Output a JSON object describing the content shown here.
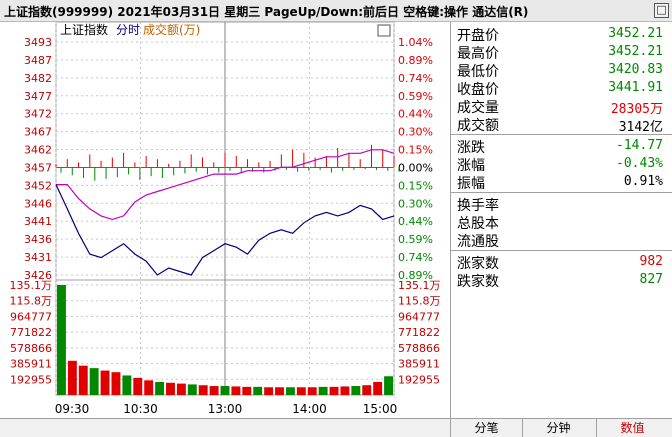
{
  "window": {
    "title": "上证指数(999999)  2021年03月31日  星期三  PageUp/Down:前后日  空格键:操作  通达信(R)",
    "close_glyph": "□"
  },
  "chart": {
    "legend": {
      "name": "上证指数",
      "line": "分时",
      "volume_label": "成交额(万)"
    },
    "colors": {
      "up": "#e00000",
      "down": "#008800",
      "index": "#000080",
      "avg": "#c000c0",
      "grid": "#c8c8c8"
    },
    "price_ticks": [
      "3493",
      "3487",
      "3482",
      "3477",
      "3472",
      "3467",
      "3462",
      "3457",
      "3452",
      "3446",
      "3441",
      "3436",
      "3431",
      "3426"
    ],
    "pct_ticks": [
      "1.04%",
      "0.89%",
      "0.74%",
      "0.59%",
      "0.44%",
      "0.30%",
      "0.15%",
      "0.00%",
      "0.15%",
      "0.30%",
      "0.44%",
      "0.59%",
      "0.74%",
      "0.89%"
    ],
    "pct_colors": [
      "up",
      "up",
      "up",
      "up",
      "up",
      "up",
      "up",
      "neutral",
      "down",
      "down",
      "down",
      "down",
      "down",
      "down"
    ],
    "volume_ticks_left": [
      "135.1万",
      "115.8万",
      "964777",
      "771822",
      "578866",
      "385911",
      "192955"
    ],
    "volume_ticks_right": [
      "135.1万",
      "115.8万",
      "964777",
      "771822",
      "578866",
      "385911",
      "192955"
    ],
    "time_ticks": [
      "09:30",
      "10:30",
      "13:00",
      "14:00",
      "15:00"
    ],
    "price_min": 3426,
    "price_max": 3493,
    "prev_close": 3457,
    "vol_max": 1351000
  },
  "chart_data": {
    "type": "line",
    "title": "上证指数(999999) 2021年03月31日",
    "x_ticks": [
      "09:30",
      "10:30",
      "13:00",
      "14:00",
      "15:00"
    ],
    "ylim": [
      3426,
      3493
    ],
    "series": [
      {
        "name": "上证指数",
        "values": [
          3452,
          3445,
          3438,
          3432,
          3431,
          3433,
          3435,
          3432,
          3430,
          3426,
          3428,
          3427,
          3426,
          3431,
          3433,
          3435,
          3434,
          3432,
          3436,
          3438,
          3439,
          3438,
          3441,
          3443,
          3444,
          3443,
          3444,
          3446,
          3445,
          3442,
          3443
        ]
      },
      {
        "name": "均价",
        "values": [
          3452,
          3452,
          3448,
          3445,
          3443,
          3442,
          3443,
          3447,
          3449,
          3450,
          3451,
          3452,
          3453,
          3454,
          3455,
          3455,
          3455,
          3456,
          3456,
          3456,
          3457,
          3457,
          3458,
          3459,
          3460,
          3460,
          3461,
          3461,
          3462,
          3462,
          3461
        ]
      }
    ],
    "volume": {
      "name": "成交额(万)",
      "ylim": [
        0,
        1351000
      ],
      "values": [
        1351000,
        420000,
        360000,
        330000,
        300000,
        280000,
        240000,
        210000,
        180000,
        160000,
        150000,
        140000,
        130000,
        120000,
        110000,
        110000,
        105000,
        100000,
        100000,
        95000,
        95000,
        95000,
        95000,
        95000,
        100000,
        100000,
        105000,
        110000,
        120000,
        160000,
        230000
      ]
    }
  },
  "panel": {
    "rows1": [
      {
        "label": "开盘价",
        "value": "3452.21",
        "color": "green"
      },
      {
        "label": "最高价",
        "value": "3452.21",
        "color": "green"
      },
      {
        "label": "最低价",
        "value": "3420.83",
        "color": "green"
      },
      {
        "label": "收盘价",
        "value": "3441.91",
        "color": "green"
      },
      {
        "label": "成交量",
        "value": "28305万",
        "color": "red"
      },
      {
        "label": "成交额",
        "value": "3142亿",
        "color": "blk"
      }
    ],
    "rows2": [
      {
        "label": "涨跌",
        "value": "-14.77",
        "color": "green"
      },
      {
        "label": "涨幅",
        "value": "-0.43%",
        "color": "green"
      },
      {
        "label": "振幅",
        "value": "0.91%",
        "color": "blk"
      }
    ],
    "rows3": [
      {
        "label": "换手率",
        "value": ""
      },
      {
        "label": "总股本",
        "value": ""
      },
      {
        "label": "流通股",
        "value": ""
      }
    ],
    "rows4": [
      {
        "label": "涨家数",
        "value": "982",
        "color": "red"
      },
      {
        "label": "跌家数",
        "value": "827",
        "color": "green"
      }
    ]
  },
  "bottom": {
    "tabs": [
      "分笔",
      "分钟",
      "数值"
    ]
  }
}
